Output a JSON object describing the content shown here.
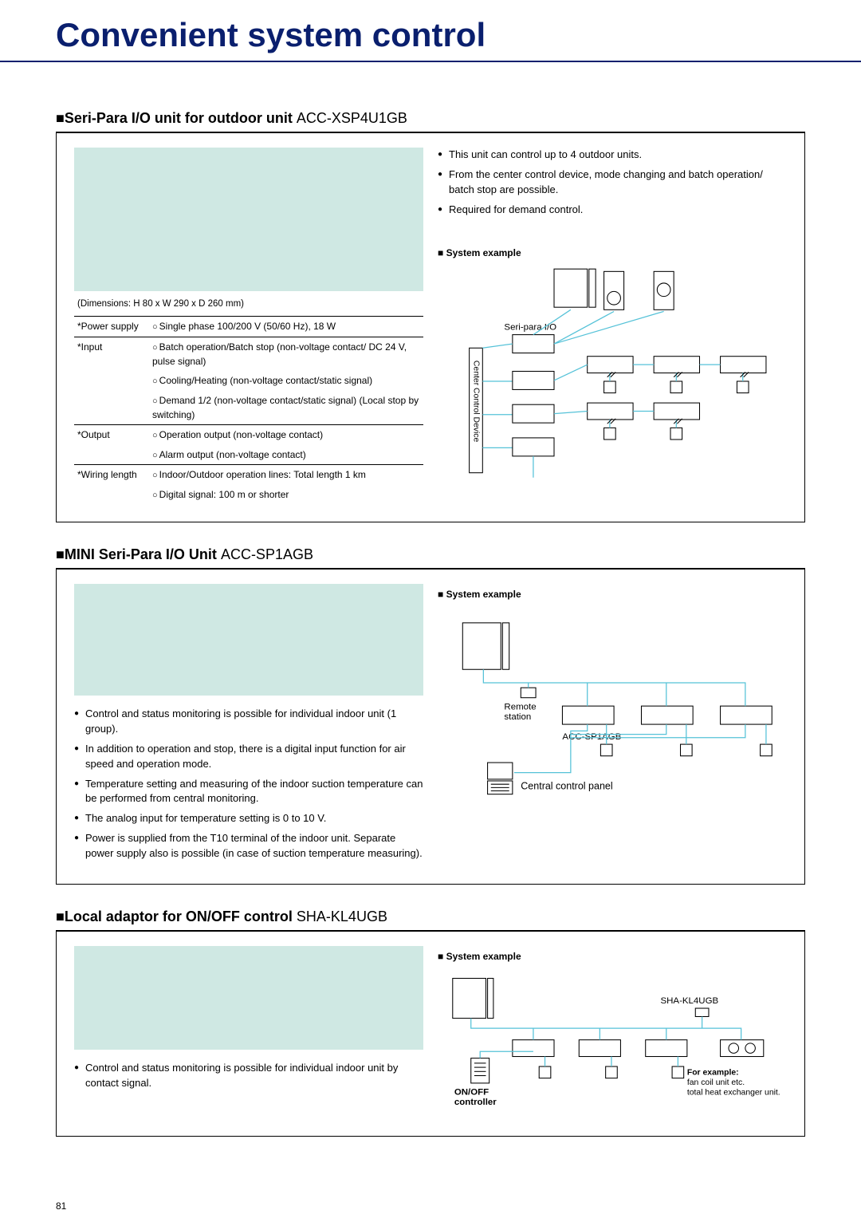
{
  "page": {
    "title": "Convenient system control",
    "number": "81"
  },
  "sections": [
    {
      "header_bold": "Seri-Para I/O unit for outdoor unit",
      "header_model": "ACC-XSP4U1GB",
      "photo_height": 180,
      "top_bullets": [
        "This unit can control up to 4 outdoor units.",
        "From the center control device, mode changing and batch operation/ batch stop are possible.",
        "Required for demand control."
      ],
      "system_example_label": "System example",
      "diagram1": {
        "seri_para_label": "Seri-para I/O",
        "center_control_label": "Center Control Device",
        "line_color": "#55c2d8",
        "outline_color": "#000000"
      },
      "specs": {
        "dimensions": "(Dimensions: H 80 x W 290 x D 260 mm)",
        "rows": [
          {
            "label": "*Power supply",
            "items": [
              "Single phase 100/200 V (50/60 Hz), 18 W"
            ]
          },
          {
            "label": "*Input",
            "items": [
              "Batch operation/Batch stop (non-voltage contact/ DC 24 V, pulse signal)",
              "Cooling/Heating (non-voltage contact/static signal)",
              "Demand 1/2 (non-voltage contact/static signal) (Local stop by switching)"
            ]
          },
          {
            "label": "*Output",
            "items": [
              "Operation output (non-voltage contact)",
              "Alarm output (non-voltage contact)"
            ]
          },
          {
            "label": "*Wiring length",
            "items": [
              "Indoor/Outdoor operation lines: Total length 1 km",
              "Digital signal: 100 m or shorter"
            ]
          }
        ]
      }
    },
    {
      "header_bold": "MINI Seri-Para I/O Unit",
      "header_model": "ACC-SP1AGB",
      "photo_height": 140,
      "bullets": [
        "Control and status monitoring is possible for individual indoor unit (1 group).",
        "In addition to operation and stop, there is a digital input function for air speed and operation mode.",
        "Temperature setting and measuring of the indoor suction temperature can be performed from central monitoring.",
        "The analog input for temperature setting is 0 to 10 V.",
        "Power is supplied from the T10 terminal of the indoor unit. Separate power supply also is possible (in case of suction temperature measuring)."
      ],
      "system_example_label": "System example",
      "diagram2": {
        "remote_label": "Remote station",
        "acc_label": "ACC-SP1AGB",
        "central_label": "Central control panel",
        "line_color": "#55c2d8"
      }
    },
    {
      "header_bold": "Local adaptor for ON/OFF control",
      "header_model": "SHA-KL4UGB",
      "photo_height": 130,
      "bullets": [
        "Control and status monitoring is possible for individual indoor unit by contact signal."
      ],
      "system_example_label": "System example",
      "diagram3": {
        "sha_label": "SHA-KL4UGB",
        "onoff_label": "ON/OFF controller",
        "example_label1": "For example:",
        "example_label2": "fan coil unit etc.",
        "example_label3": "total heat exchanger unit.",
        "line_color": "#55c2d8"
      }
    }
  ]
}
